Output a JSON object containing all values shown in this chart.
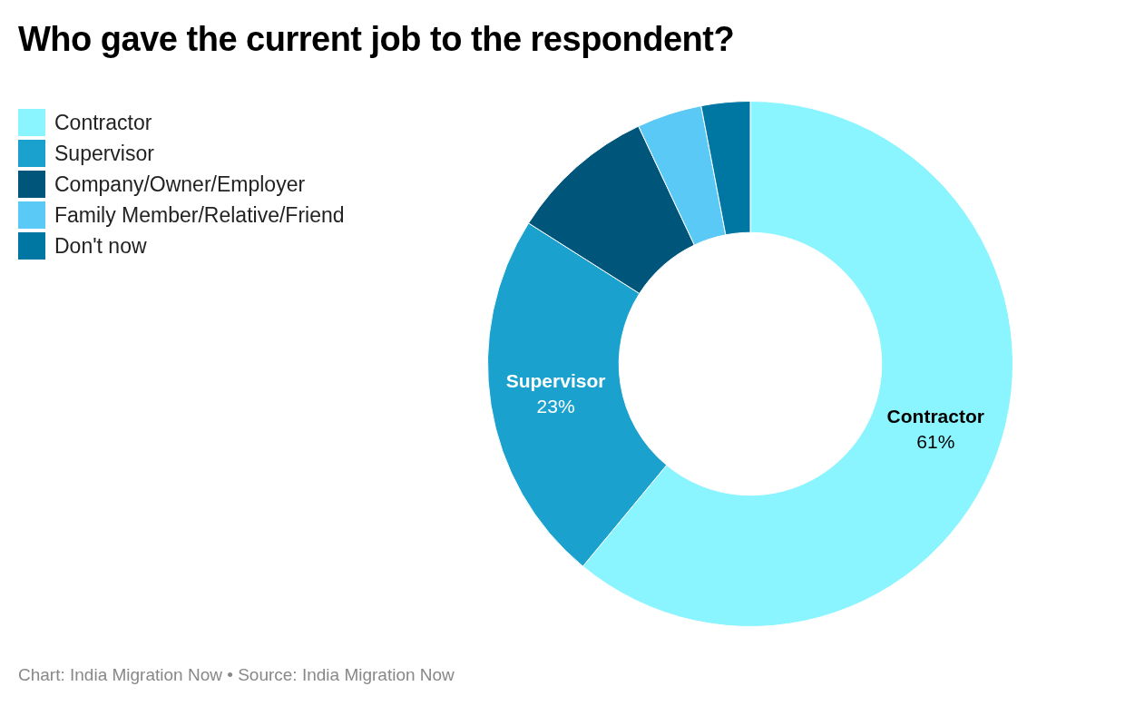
{
  "chart_data": {
    "type": "donut",
    "title": "Who gave the current job to the respondent?",
    "categories": [
      "Contractor",
      "Supervisor",
      "Company/Owner/Employer",
      "Family Member/Relative/Friend",
      "Don't now"
    ],
    "values": [
      61,
      23,
      9,
      4,
      3
    ],
    "colors": [
      "#8af4ff",
      "#1ba1ce",
      "#00557b",
      "#5ac9f5",
      "#0076a2"
    ],
    "value_labels": [
      "61%",
      "23%",
      null,
      null,
      null
    ],
    "legend": "top left",
    "annotations": [
      "Chart: India Migration Now • Source: India Migration Now"
    ]
  }
}
